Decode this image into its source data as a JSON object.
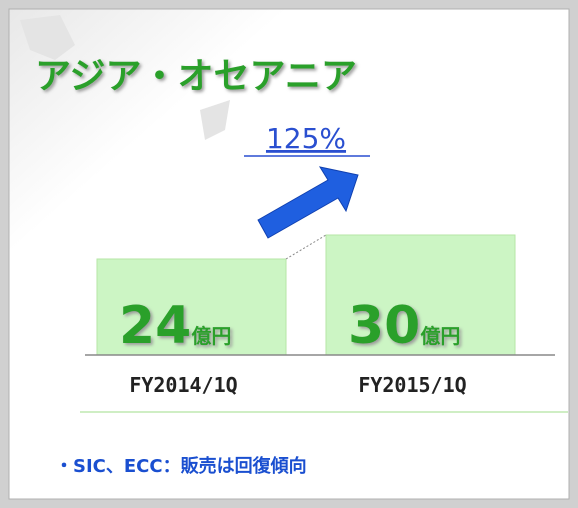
{
  "chart_data": {
    "type": "bar",
    "title": "アジア・オセアニア",
    "annotation": "125%",
    "categories": [
      "FY2014/1Q",
      "FY2015/1Q"
    ],
    "values": [
      24,
      30
    ],
    "unit": "億円",
    "color": "#ccf5c4",
    "note": "・SIC、ECC：販売は回復傾向"
  }
}
